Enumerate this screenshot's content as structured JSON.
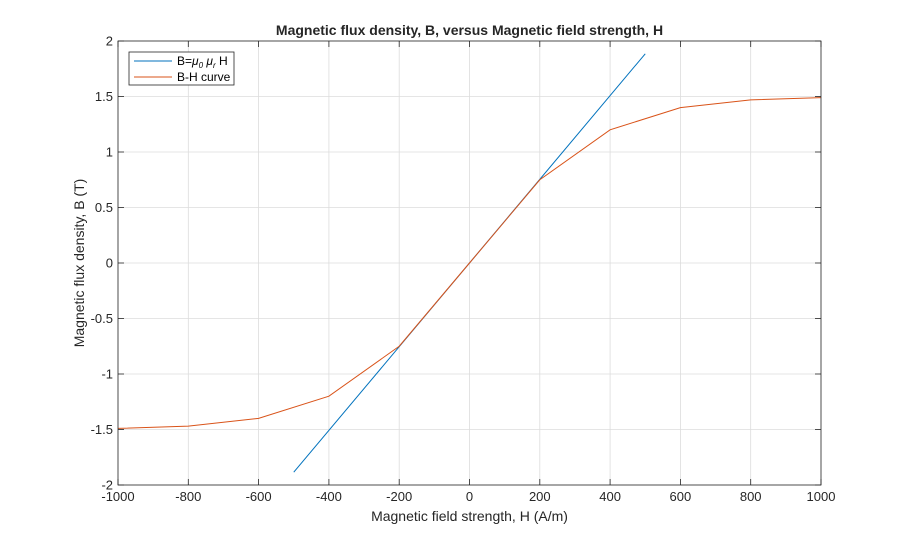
{
  "chart_data": {
    "type": "line",
    "title": "Magnetic flux density, B, versus Magnetic field strength, H",
    "xlabel": "Magnetic field strength, H (A/m)",
    "ylabel": "Magnetic flux density, B (T)",
    "xlim": [
      -1000,
      1000
    ],
    "ylim": [
      -2,
      2
    ],
    "xticks": [
      -1000,
      -800,
      -600,
      -400,
      -200,
      0,
      200,
      400,
      600,
      800,
      1000
    ],
    "yticks": [
      -2,
      -1.5,
      -1,
      -0.5,
      0,
      0.5,
      1,
      1.5,
      2
    ],
    "xtick_labels": [
      "-1000",
      "-800",
      "-600",
      "-400",
      "-200",
      "0",
      "200",
      "400",
      "600",
      "800",
      "1000"
    ],
    "ytick_labels": [
      "-2",
      "-1.5",
      "-1",
      "-0.5",
      "0",
      "0.5",
      "1",
      "1.5",
      "2"
    ],
    "grid": true,
    "legend_position": "top-left",
    "series": [
      {
        "name": "B=μ₀ μᵣ H",
        "legend_parts": {
          "prefix": "B=",
          "mu": "μ",
          "sub0": "0",
          "sub_r": "r",
          "suffix": " H"
        },
        "color": "#0072BD",
        "x": [
          -500,
          500
        ],
        "y": [
          -1.885,
          1.885
        ]
      },
      {
        "name": "B-H curve",
        "color": "#D95319",
        "x": [
          -1000,
          -800,
          -600,
          -400,
          -200,
          0,
          200,
          400,
          600,
          800,
          1000
        ],
        "y": [
          -1.49,
          -1.47,
          -1.4,
          -1.2,
          -0.75,
          0,
          0.75,
          1.2,
          1.4,
          1.47,
          1.49
        ]
      }
    ]
  }
}
